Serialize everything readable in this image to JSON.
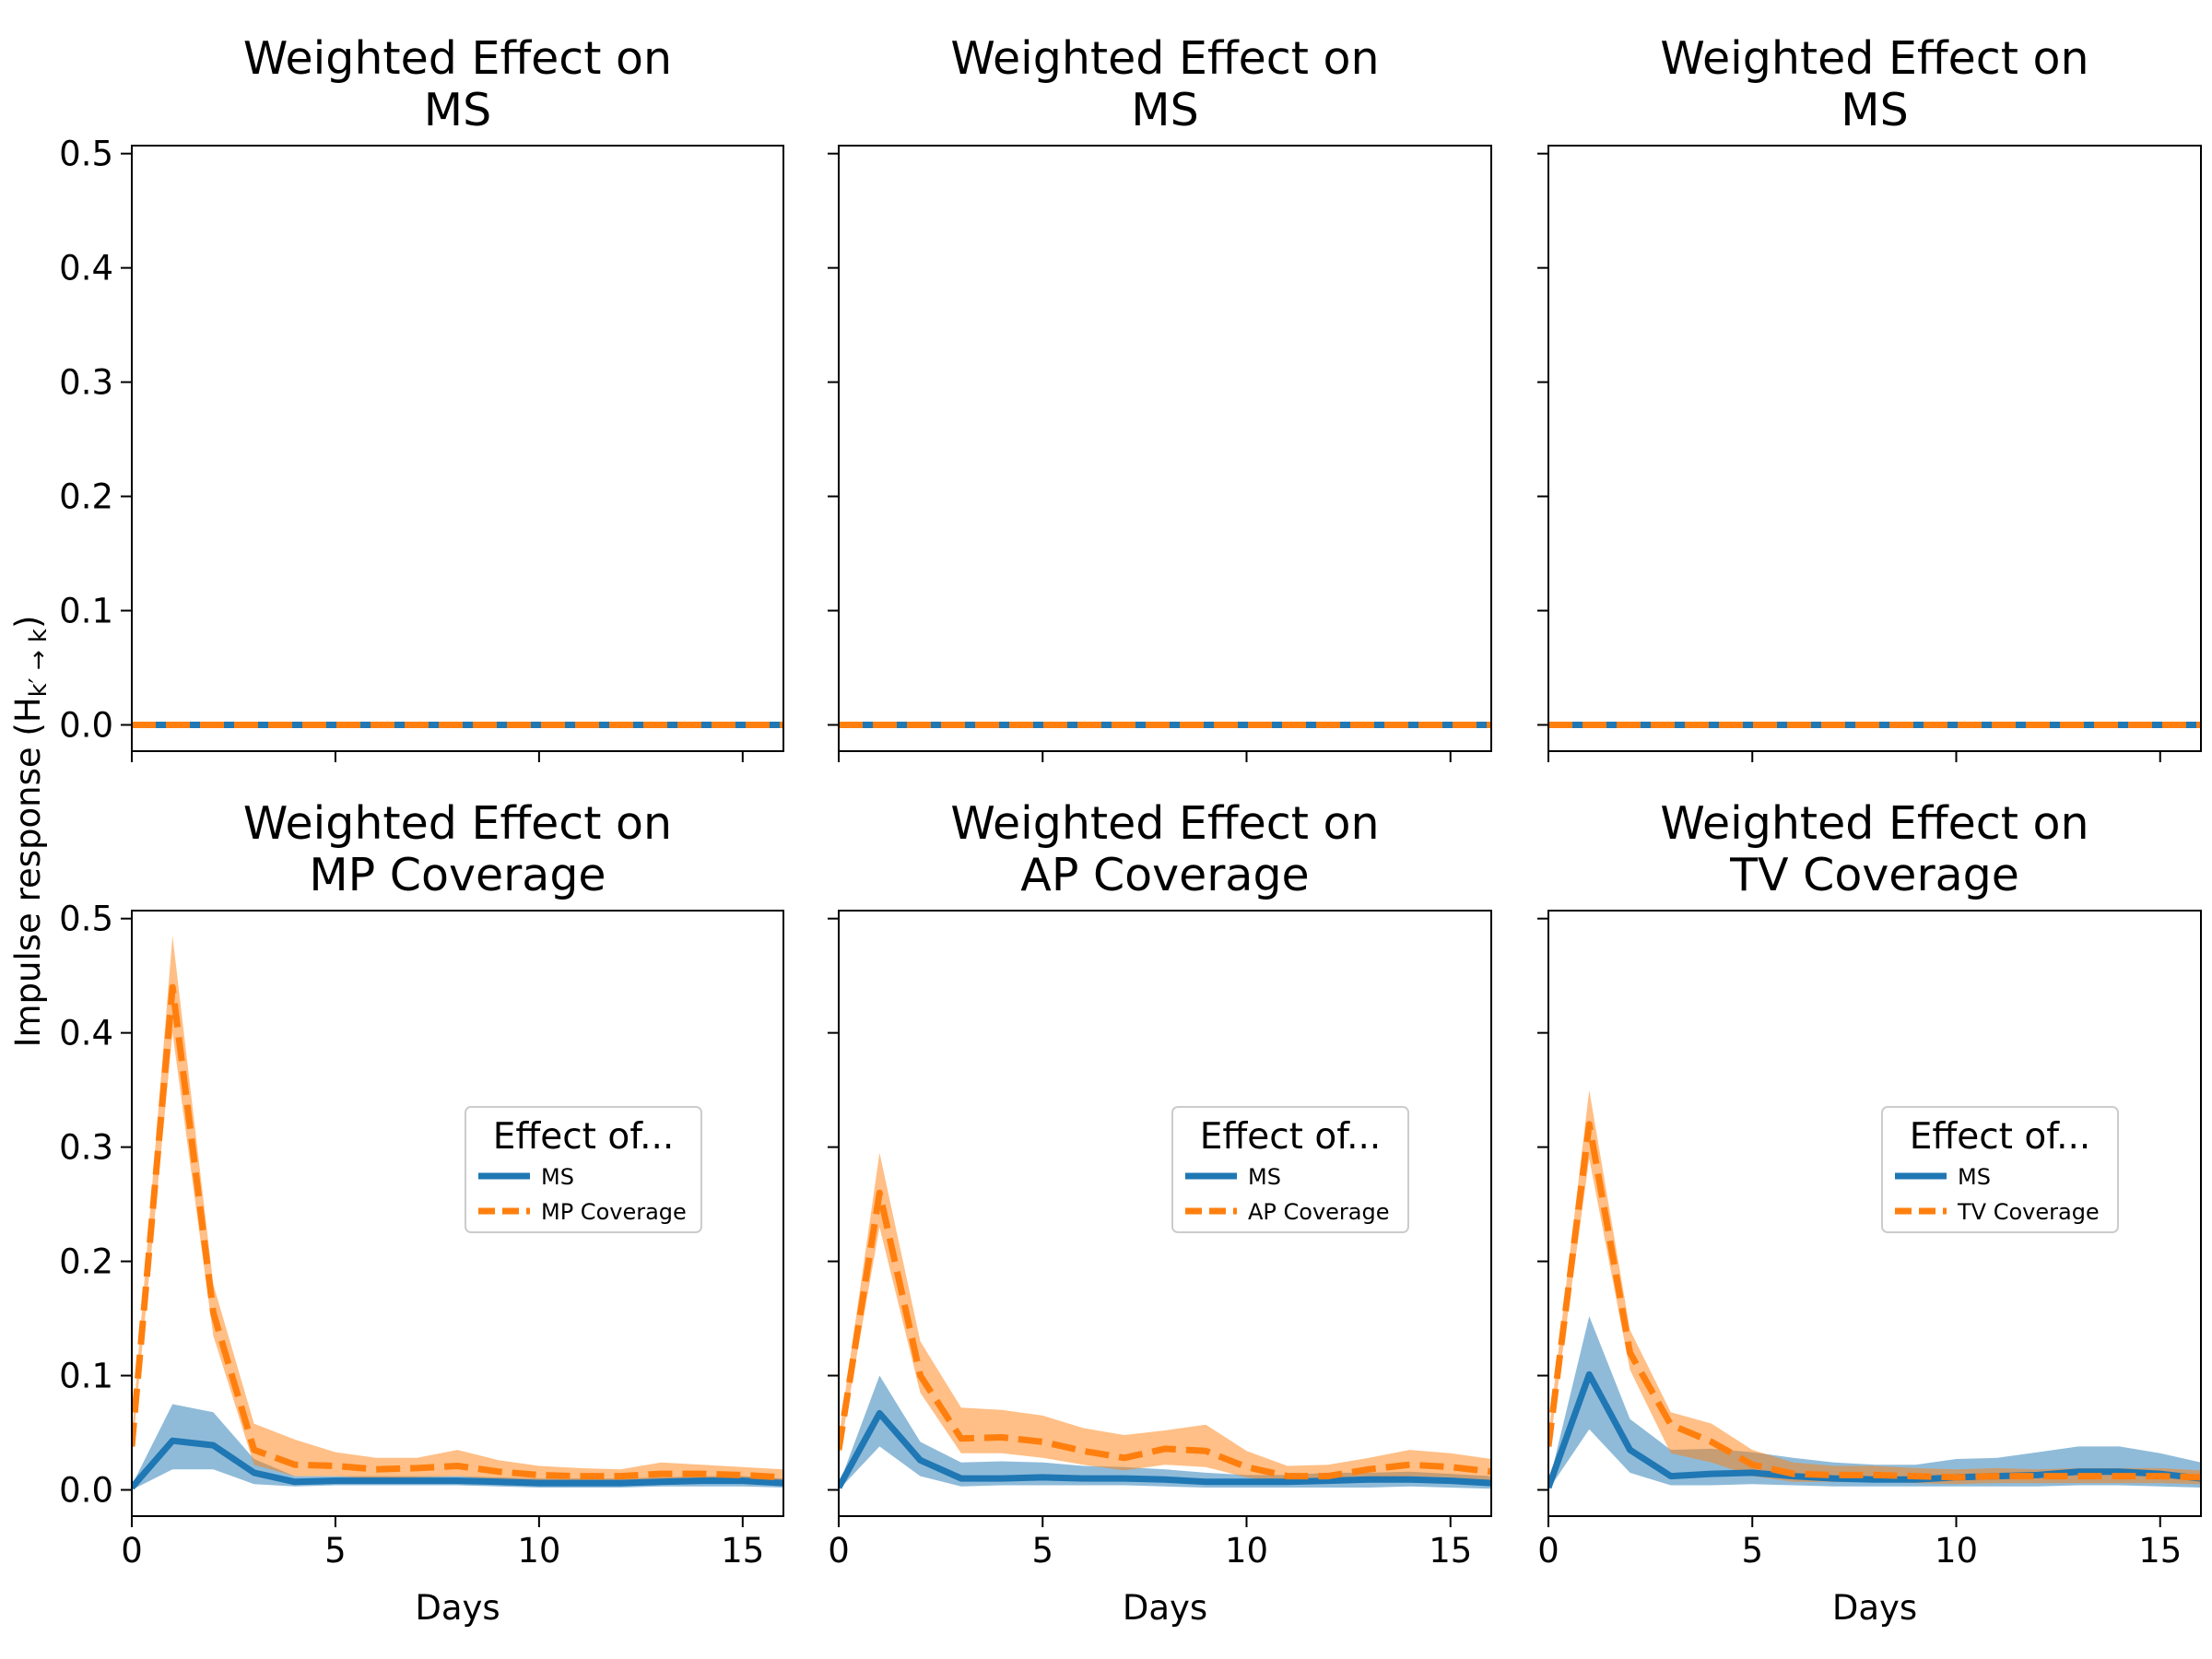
{
  "figure": {
    "ylabel": "Impulse response (H",
    "ylabel_sub": "k′ → k",
    "ylabel_close": ")",
    "xlabel": "Days",
    "colors": {
      "ms": "#1f77b4",
      "coverage": "#ff7f0e"
    }
  },
  "chart_data": [
    {
      "type": "line",
      "title": [
        "Weighted Effect on",
        "MS"
      ],
      "xlim": [
        0,
        16
      ],
      "ylim": [
        -0.023,
        0.507
      ],
      "xticks": [
        0,
        5,
        10,
        15
      ],
      "yticks": [
        "0.0",
        "0.1",
        "0.2",
        "0.3",
        "0.4",
        "0.5"
      ],
      "show_xticklabels": false,
      "show_yticklabels": true,
      "show_xlabel": false,
      "x": [
        0,
        1,
        2,
        3,
        4,
        5,
        6,
        7,
        8,
        9,
        10,
        11,
        12,
        13,
        14,
        15,
        16
      ],
      "series": [
        {
          "key": "ms",
          "style": "solid",
          "values": [
            0,
            0,
            0,
            0,
            0,
            0,
            0,
            0,
            0,
            0,
            0,
            0,
            0,
            0,
            0,
            0,
            0
          ],
          "band_lo": [
            0,
            0,
            0,
            0,
            0,
            0,
            0,
            0,
            0,
            0,
            0,
            0,
            0,
            0,
            0,
            0,
            0
          ],
          "band_hi": [
            0,
            0,
            0,
            0,
            0,
            0,
            0,
            0,
            0,
            0,
            0,
            0,
            0,
            0,
            0,
            0,
            0
          ]
        },
        {
          "key": "coverage",
          "style": "dashed",
          "values": [
            0,
            0,
            0,
            0,
            0,
            0,
            0,
            0,
            0,
            0,
            0,
            0,
            0,
            0,
            0,
            0,
            0
          ],
          "band_lo": [
            0,
            0,
            0,
            0,
            0,
            0,
            0,
            0,
            0,
            0,
            0,
            0,
            0,
            0,
            0,
            0,
            0
          ],
          "band_hi": [
            0,
            0,
            0,
            0,
            0,
            0,
            0,
            0,
            0,
            0,
            0,
            0,
            0,
            0,
            0,
            0,
            0
          ]
        }
      ],
      "legend": null
    },
    {
      "type": "line",
      "title": [
        "Weighted Effect on",
        "MS"
      ],
      "xlim": [
        0,
        16
      ],
      "ylim": [
        -0.023,
        0.507
      ],
      "xticks": [
        0,
        5,
        10,
        15
      ],
      "yticks": [
        "0.0",
        "0.1",
        "0.2",
        "0.3",
        "0.4",
        "0.5"
      ],
      "show_xticklabels": false,
      "show_yticklabels": false,
      "show_xlabel": false,
      "x": [
        0,
        1,
        2,
        3,
        4,
        5,
        6,
        7,
        8,
        9,
        10,
        11,
        12,
        13,
        14,
        15,
        16
      ],
      "series": [
        {
          "key": "ms",
          "style": "solid",
          "values": [
            0,
            0,
            0,
            0,
            0,
            0,
            0,
            0,
            0,
            0,
            0,
            0,
            0,
            0,
            0,
            0,
            0
          ],
          "band_lo": [
            0,
            0,
            0,
            0,
            0,
            0,
            0,
            0,
            0,
            0,
            0,
            0,
            0,
            0,
            0,
            0,
            0
          ],
          "band_hi": [
            0,
            0,
            0,
            0,
            0,
            0,
            0,
            0,
            0,
            0,
            0,
            0,
            0,
            0,
            0,
            0,
            0
          ]
        },
        {
          "key": "coverage",
          "style": "dashed",
          "values": [
            0,
            0,
            0,
            0,
            0,
            0,
            0,
            0,
            0,
            0,
            0,
            0,
            0,
            0,
            0,
            0,
            0
          ],
          "band_lo": [
            0,
            0,
            0,
            0,
            0,
            0,
            0,
            0,
            0,
            0,
            0,
            0,
            0,
            0,
            0,
            0,
            0
          ],
          "band_hi": [
            0,
            0,
            0,
            0,
            0,
            0,
            0,
            0,
            0,
            0,
            0,
            0,
            0,
            0,
            0,
            0,
            0
          ]
        }
      ],
      "legend": null
    },
    {
      "type": "line",
      "title": [
        "Weighted Effect on",
        "MS"
      ],
      "xlim": [
        0,
        16
      ],
      "ylim": [
        -0.023,
        0.507
      ],
      "xticks": [
        0,
        5,
        10,
        15
      ],
      "yticks": [
        "0.0",
        "0.1",
        "0.2",
        "0.3",
        "0.4",
        "0.5"
      ],
      "show_xticklabels": false,
      "show_yticklabels": false,
      "show_xlabel": false,
      "x": [
        0,
        1,
        2,
        3,
        4,
        5,
        6,
        7,
        8,
        9,
        10,
        11,
        12,
        13,
        14,
        15,
        16
      ],
      "series": [
        {
          "key": "ms",
          "style": "solid",
          "values": [
            0,
            0,
            0,
            0,
            0,
            0,
            0,
            0,
            0,
            0,
            0,
            0,
            0,
            0,
            0,
            0,
            0
          ],
          "band_lo": [
            0,
            0,
            0,
            0,
            0,
            0,
            0,
            0,
            0,
            0,
            0,
            0,
            0,
            0,
            0,
            0,
            0
          ],
          "band_hi": [
            0,
            0,
            0,
            0,
            0,
            0,
            0,
            0,
            0,
            0,
            0,
            0,
            0,
            0,
            0,
            0,
            0
          ]
        },
        {
          "key": "coverage",
          "style": "dashed",
          "values": [
            0,
            0,
            0,
            0,
            0,
            0,
            0,
            0,
            0,
            0,
            0,
            0,
            0,
            0,
            0,
            0,
            0
          ],
          "band_lo": [
            0,
            0,
            0,
            0,
            0,
            0,
            0,
            0,
            0,
            0,
            0,
            0,
            0,
            0,
            0,
            0,
            0
          ],
          "band_hi": [
            0,
            0,
            0,
            0,
            0,
            0,
            0,
            0,
            0,
            0,
            0,
            0,
            0,
            0,
            0,
            0,
            0
          ]
        }
      ],
      "legend": null
    },
    {
      "type": "line",
      "title": [
        "Weighted Effect on",
        "MP Coverage"
      ],
      "xlim": [
        0,
        16
      ],
      "ylim": [
        -0.023,
        0.507
      ],
      "xticks": [
        0,
        5,
        10,
        15
      ],
      "yticks": [
        "0.0",
        "0.1",
        "0.2",
        "0.3",
        "0.4",
        "0.5"
      ],
      "show_xticklabels": true,
      "show_yticklabels": true,
      "show_xlabel": true,
      "x": [
        0,
        1,
        2,
        3,
        4,
        5,
        6,
        7,
        8,
        9,
        10,
        11,
        12,
        13,
        14,
        15,
        16
      ],
      "series": [
        {
          "key": "ms",
          "style": "solid",
          "values": [
            0.002,
            0.043,
            0.039,
            0.015,
            0.007,
            0.008,
            0.008,
            0.008,
            0.008,
            0.007,
            0.006,
            0.006,
            0.006,
            0.007,
            0.008,
            0.008,
            0.006
          ],
          "band_lo": [
            0.0,
            0.018,
            0.018,
            0.005,
            0.003,
            0.004,
            0.004,
            0.004,
            0.004,
            0.003,
            0.002,
            0.002,
            0.002,
            0.003,
            0.003,
            0.003,
            0.002
          ],
          "band_hi": [
            0.004,
            0.075,
            0.068,
            0.027,
            0.012,
            0.012,
            0.012,
            0.012,
            0.012,
            0.011,
            0.01,
            0.01,
            0.01,
            0.011,
            0.012,
            0.012,
            0.01
          ]
        },
        {
          "key": "coverage",
          "style": "dashed",
          "values": [
            0.038,
            0.44,
            0.155,
            0.035,
            0.022,
            0.021,
            0.018,
            0.019,
            0.021,
            0.016,
            0.013,
            0.012,
            0.012,
            0.014,
            0.014,
            0.013,
            0.011
          ],
          "band_lo": [
            0.03,
            0.4,
            0.135,
            0.022,
            0.012,
            0.012,
            0.01,
            0.011,
            0.012,
            0.009,
            0.007,
            0.006,
            0.006,
            0.007,
            0.007,
            0.007,
            0.005
          ],
          "band_hi": [
            0.048,
            0.485,
            0.18,
            0.058,
            0.044,
            0.033,
            0.028,
            0.028,
            0.035,
            0.026,
            0.021,
            0.019,
            0.018,
            0.024,
            0.022,
            0.02,
            0.018
          ]
        }
      ],
      "legend": {
        "title": "Effect of...",
        "entries": [
          "MS",
          "MP Coverage"
        ]
      }
    },
    {
      "type": "line",
      "title": [
        "Weighted Effect on",
        "AP Coverage"
      ],
      "xlim": [
        0,
        16
      ],
      "ylim": [
        -0.023,
        0.507
      ],
      "xticks": [
        0,
        5,
        10,
        15
      ],
      "yticks": [
        "0.0",
        "0.1",
        "0.2",
        "0.3",
        "0.4",
        "0.5"
      ],
      "show_xticklabels": true,
      "show_yticklabels": false,
      "show_xlabel": true,
      "x": [
        0,
        1,
        2,
        3,
        4,
        5,
        6,
        7,
        8,
        9,
        10,
        11,
        12,
        13,
        14,
        15,
        16
      ],
      "series": [
        {
          "key": "ms",
          "style": "solid",
          "values": [
            0.002,
            0.067,
            0.026,
            0.01,
            0.01,
            0.011,
            0.01,
            0.01,
            0.009,
            0.007,
            0.007,
            0.007,
            0.008,
            0.009,
            0.009,
            0.008,
            0.006
          ],
          "band_lo": [
            0.0,
            0.038,
            0.012,
            0.003,
            0.004,
            0.004,
            0.004,
            0.004,
            0.003,
            0.002,
            0.002,
            0.002,
            0.002,
            0.002,
            0.003,
            0.002,
            0.001
          ],
          "band_hi": [
            0.004,
            0.1,
            0.042,
            0.024,
            0.025,
            0.024,
            0.021,
            0.02,
            0.018,
            0.015,
            0.013,
            0.013,
            0.015,
            0.015,
            0.016,
            0.014,
            0.012
          ]
        },
        {
          "key": "coverage",
          "style": "dashed",
          "values": [
            0.035,
            0.26,
            0.1,
            0.045,
            0.046,
            0.042,
            0.034,
            0.028,
            0.036,
            0.034,
            0.02,
            0.012,
            0.012,
            0.018,
            0.022,
            0.02,
            0.016
          ],
          "band_lo": [
            0.028,
            0.23,
            0.085,
            0.032,
            0.032,
            0.028,
            0.022,
            0.017,
            0.022,
            0.02,
            0.011,
            0.006,
            0.006,
            0.009,
            0.012,
            0.011,
            0.008
          ],
          "band_hi": [
            0.045,
            0.295,
            0.13,
            0.072,
            0.07,
            0.065,
            0.054,
            0.048,
            0.052,
            0.057,
            0.034,
            0.021,
            0.022,
            0.028,
            0.035,
            0.032,
            0.027
          ]
        }
      ],
      "legend": {
        "title": "Effect of...",
        "entries": [
          "MS",
          "AP Coverage"
        ]
      }
    },
    {
      "type": "line",
      "title": [
        "Weighted Effect on",
        "TV Coverage"
      ],
      "xlim": [
        0,
        16
      ],
      "ylim": [
        -0.023,
        0.507
      ],
      "xticks": [
        0,
        5,
        10,
        15
      ],
      "yticks": [
        "0.0",
        "0.1",
        "0.2",
        "0.3",
        "0.4",
        "0.5"
      ],
      "show_xticklabels": true,
      "show_yticklabels": false,
      "show_xlabel": true,
      "x": [
        0,
        1,
        2,
        3,
        4,
        5,
        6,
        7,
        8,
        9,
        10,
        11,
        12,
        13,
        14,
        15,
        16
      ],
      "series": [
        {
          "key": "ms",
          "style": "solid",
          "values": [
            0.002,
            0.101,
            0.035,
            0.012,
            0.014,
            0.015,
            0.012,
            0.01,
            0.009,
            0.009,
            0.011,
            0.012,
            0.013,
            0.016,
            0.016,
            0.014,
            0.01
          ],
          "band_lo": [
            0.0,
            0.053,
            0.015,
            0.004,
            0.004,
            0.005,
            0.004,
            0.003,
            0.003,
            0.003,
            0.003,
            0.003,
            0.003,
            0.004,
            0.004,
            0.003,
            0.002
          ],
          "band_hi": [
            0.004,
            0.152,
            0.062,
            0.035,
            0.036,
            0.033,
            0.028,
            0.024,
            0.022,
            0.022,
            0.027,
            0.028,
            0.033,
            0.038,
            0.038,
            0.032,
            0.024
          ]
        },
        {
          "key": "coverage",
          "style": "dashed",
          "values": [
            0.038,
            0.32,
            0.12,
            0.057,
            0.042,
            0.022,
            0.014,
            0.013,
            0.013,
            0.012,
            0.011,
            0.012,
            0.012,
            0.012,
            0.012,
            0.012,
            0.011
          ],
          "band_lo": [
            0.03,
            0.29,
            0.105,
            0.032,
            0.024,
            0.012,
            0.007,
            0.007,
            0.007,
            0.006,
            0.005,
            0.006,
            0.006,
            0.006,
            0.006,
            0.006,
            0.005
          ],
          "band_hi": [
            0.048,
            0.35,
            0.14,
            0.068,
            0.058,
            0.035,
            0.024,
            0.021,
            0.021,
            0.019,
            0.018,
            0.019,
            0.018,
            0.019,
            0.019,
            0.019,
            0.017
          ]
        }
      ],
      "legend": {
        "title": "Effect of...",
        "entries": [
          "MS",
          "TV Coverage"
        ]
      }
    }
  ]
}
